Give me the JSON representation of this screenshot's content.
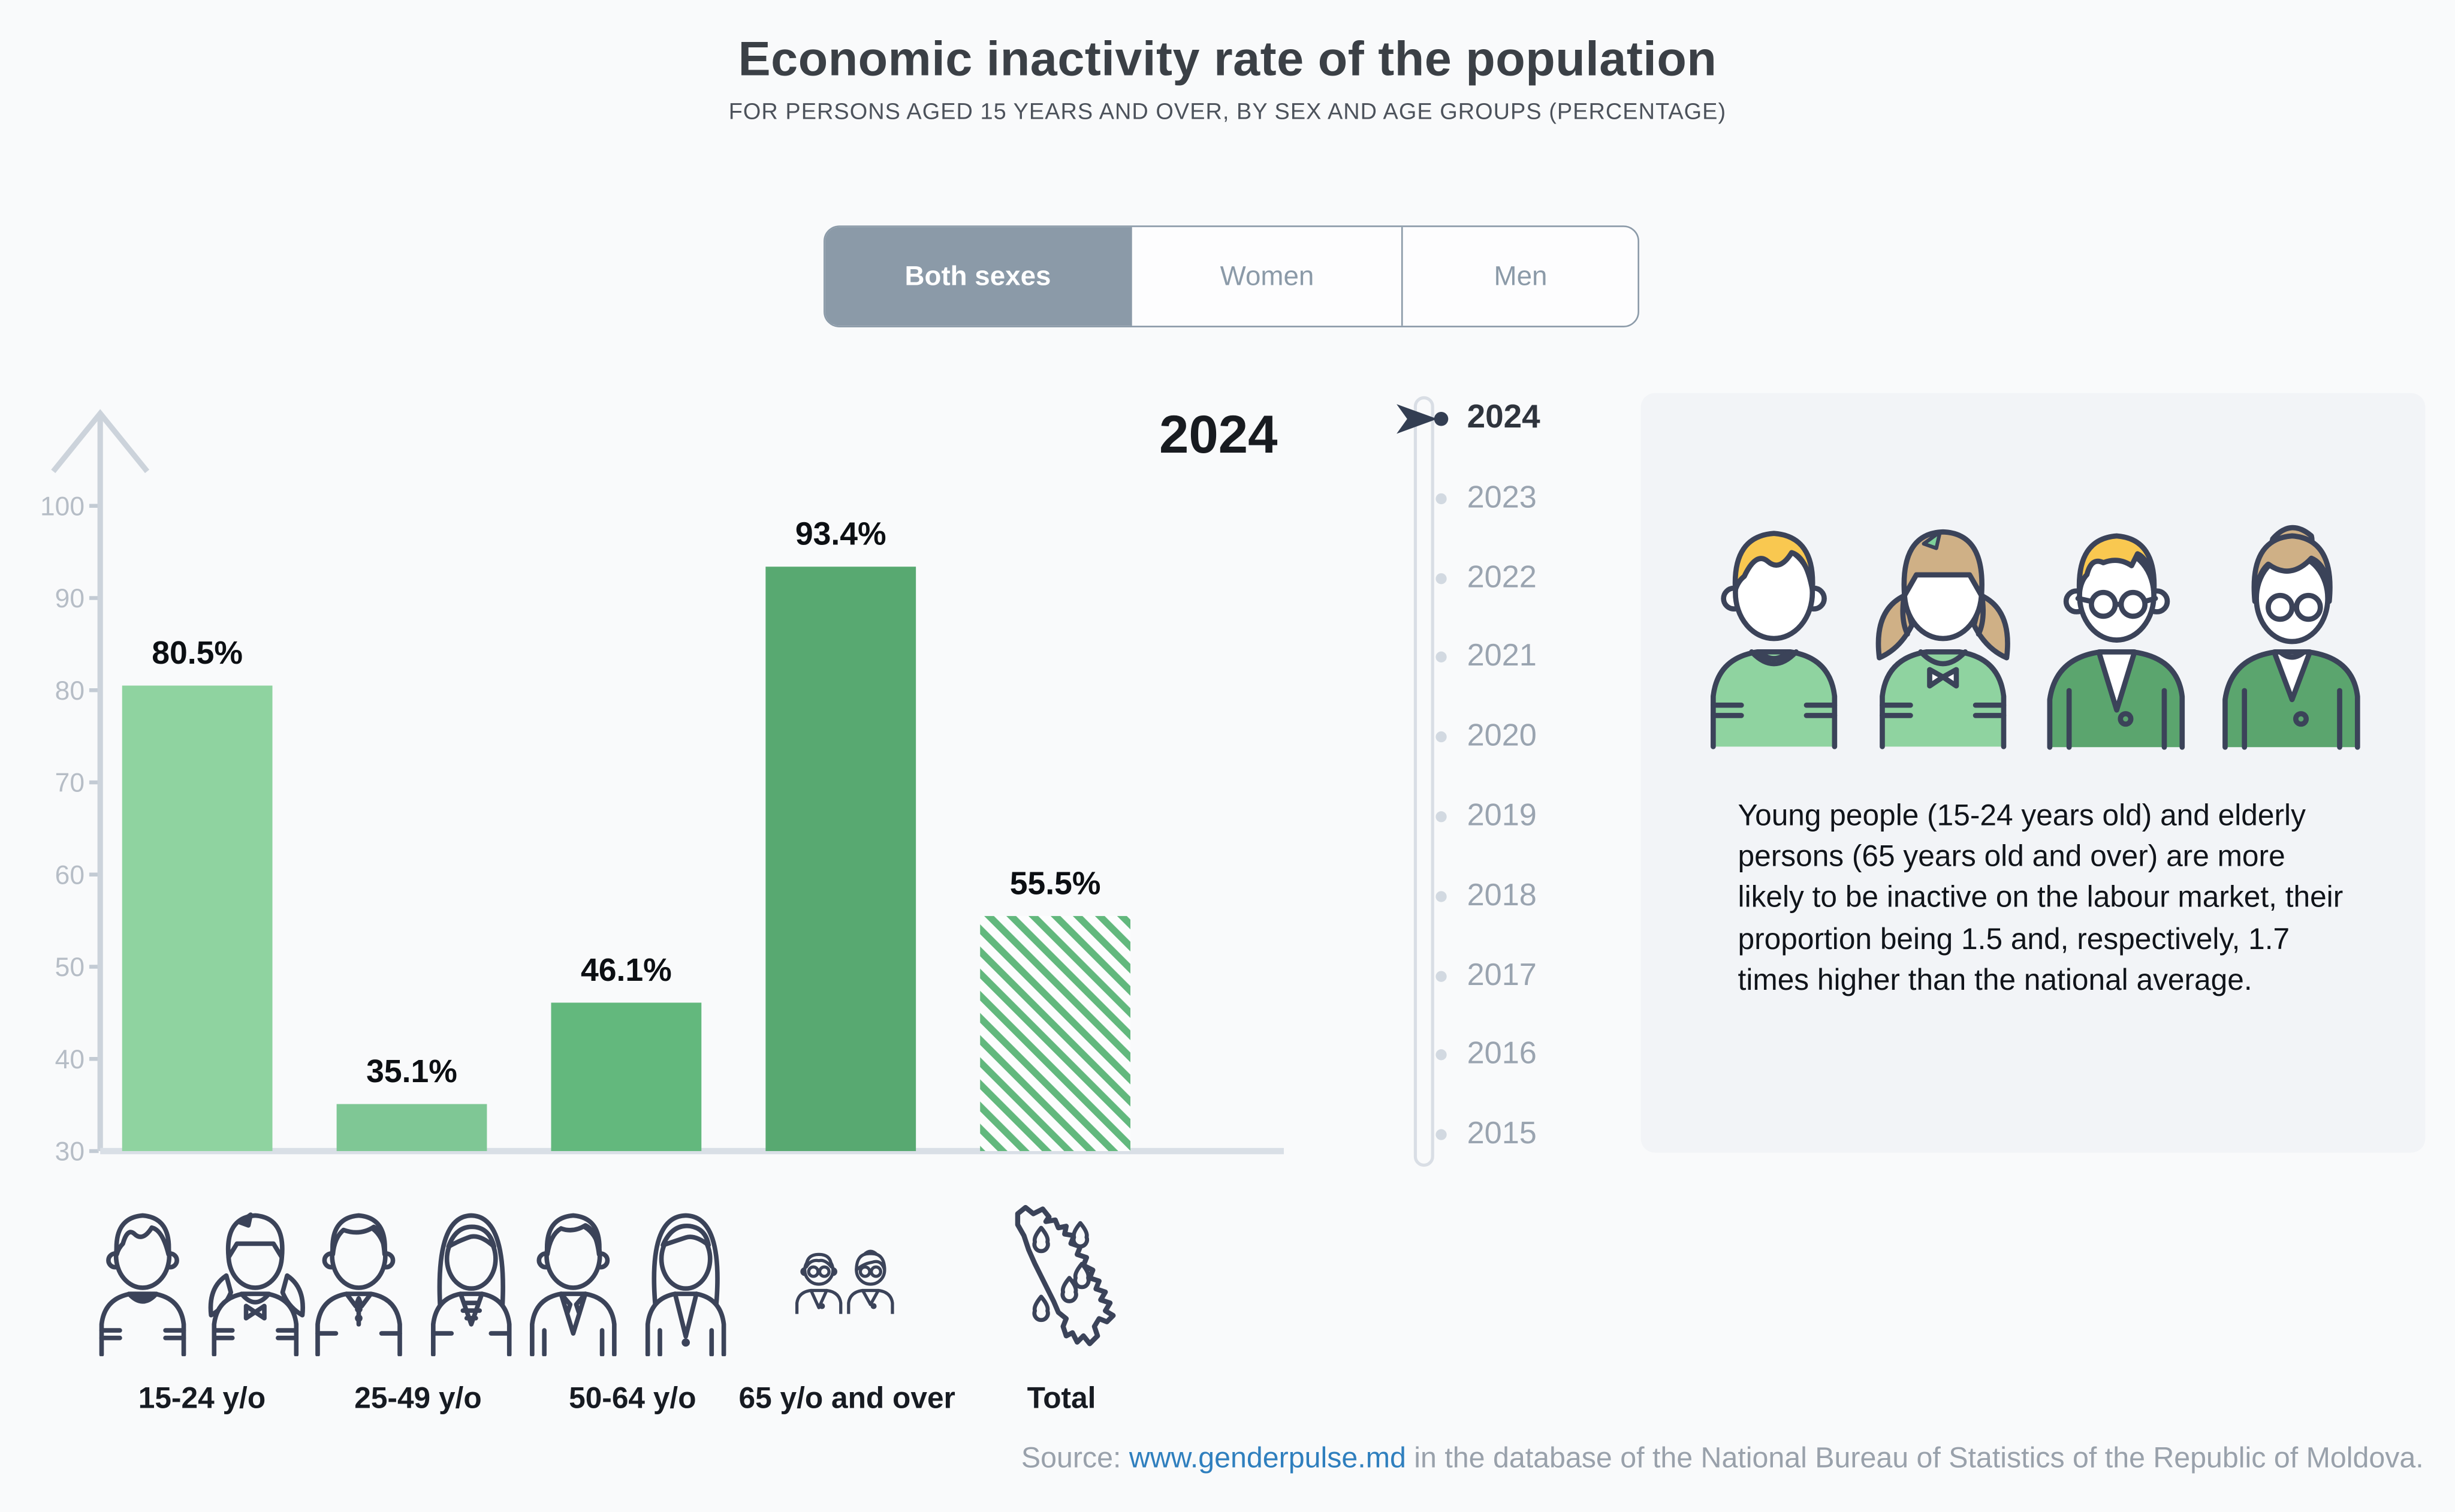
{
  "header": {
    "title": "Economic inactivity rate of the population",
    "subtitle": "FOR PERSONS AGED 15 YEARS AND OVER, BY SEX AND AGE GROUPS (PERCENTAGE)"
  },
  "tabs": [
    {
      "label": "Both sexes",
      "active": true
    },
    {
      "label": "Women",
      "active": false
    },
    {
      "label": "Men",
      "active": false
    }
  ],
  "chart_data": {
    "type": "bar",
    "title": "2024",
    "categories": [
      "15-24 y/o",
      "25-49 y/o",
      "50-64 y/o",
      "65 y/o and over",
      "Total"
    ],
    "values": [
      80.5,
      35.1,
      46.1,
      93.4,
      55.5
    ],
    "value_labels": [
      "80.5%",
      "35.1%",
      "46.1%",
      "93.4%",
      "55.5%"
    ],
    "ylabel": "",
    "xlabel": "",
    "ylim": [
      30,
      100
    ],
    "yticks": [
      30,
      40,
      50,
      60,
      70,
      80,
      90,
      100
    ],
    "grid": false,
    "legend_position": "none",
    "bar_colors": [
      "#8fd3a0",
      "#7fc795",
      "#63b87d",
      "#58a971",
      "hatch"
    ],
    "hatch_color": "#62b87d",
    "category_icons": [
      "teen-boy-girl-icon",
      "adult-man-woman-icon",
      "senior-man-woman-icon",
      "elderly-couple-icon",
      "moldova-map-icon"
    ]
  },
  "timeline": {
    "years": [
      "2024",
      "2023",
      "2022",
      "2021",
      "2020",
      "2019",
      "2018",
      "2017",
      "2016",
      "2015"
    ],
    "active_year": "2024"
  },
  "info_card": {
    "text": "Young people (15-24 years old) and elderly persons (65 years old and over) are more likely to be inactive on the labour market, their proportion being 1.5 and, respectively, 1.7 times higher than the national average."
  },
  "source": {
    "prefix": "Source: ",
    "link": "www.genderpulse.md",
    "suffix": " in the database of the National Bureau of Statistics of the Republic of Moldova."
  },
  "colors": {
    "background": "#f9fafb",
    "active_tab": "#8b9aa8",
    "outline_navy": "#3b4359",
    "hair_yellow": "#f9c850",
    "hair_tan": "#cfb086",
    "shirt_light_green": "#8fd3a0",
    "blazer_green": "#5ba56e",
    "link_blue": "#2f7fbe",
    "card_background": "#f2f4f7"
  }
}
